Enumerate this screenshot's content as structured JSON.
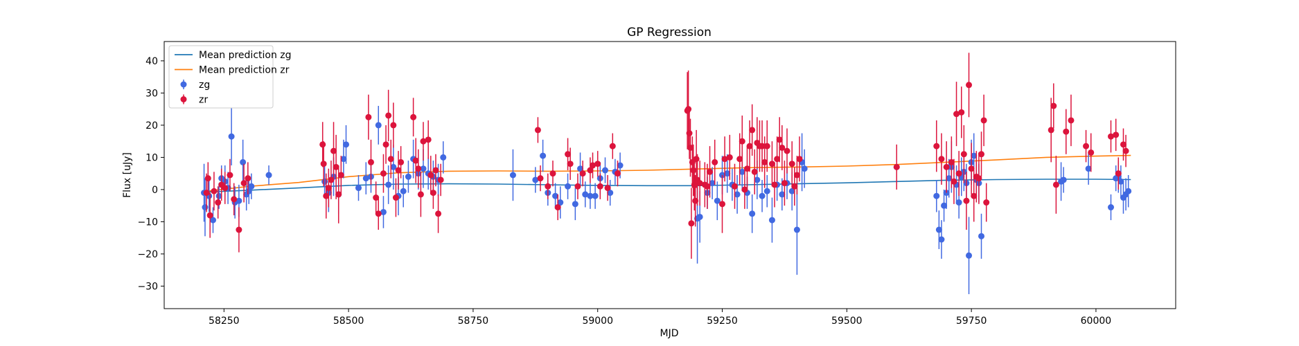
{
  "chart_data": {
    "type": "scatter",
    "title": "GP Regression",
    "xlabel": "MJD",
    "ylabel": "Flux [uJy]",
    "xlim": [
      58130,
      60160
    ],
    "ylim": [
      -37,
      46
    ],
    "xticks": [
      58250,
      58500,
      58750,
      59000,
      59250,
      59500,
      59750,
      60000
    ],
    "yticks": [
      -30,
      -20,
      -10,
      0,
      10,
      20,
      30,
      40
    ],
    "grid": false,
    "legend_position": "top-left",
    "legend": [
      {
        "label": "Mean prediction zg",
        "kind": "line",
        "color": "#1f77b4"
      },
      {
        "label": "Mean prediction zr",
        "kind": "line",
        "color": "#ff7f0e"
      },
      {
        "label": "zg",
        "kind": "errorbar",
        "color": "#4169e1"
      },
      {
        "label": "zr",
        "kind": "errorbar",
        "color": "#dc143c"
      }
    ],
    "lines": [
      {
        "name": "Mean prediction zg",
        "color": "#1f77b4",
        "x": [
          58215,
          58300,
          58400,
          58500,
          58600,
          58700,
          58800,
          58900,
          59000,
          59100,
          59200,
          59300,
          59400,
          59500,
          59600,
          59700,
          59800,
          59900,
          60000,
          60070
        ],
        "y": [
          -0.8,
          -0.2,
          0.5,
          1.3,
          1.7,
          1.8,
          1.7,
          1.5,
          1.3,
          1.2,
          1.2,
          1.5,
          1.8,
          2.1,
          2.5,
          2.9,
          3.1,
          3.2,
          3.2,
          3.1
        ]
      },
      {
        "name": "Mean prediction zr",
        "color": "#ff7f0e",
        "x": [
          58215,
          58300,
          58400,
          58500,
          58600,
          58700,
          58800,
          58900,
          59000,
          59100,
          59200,
          59300,
          59400,
          59500,
          59600,
          59700,
          59800,
          59900,
          60000,
          60070
        ],
        "y": [
          -0.5,
          1.0,
          2.2,
          4.0,
          5.2,
          5.7,
          5.8,
          5.7,
          5.8,
          6.0,
          6.4,
          6.8,
          7.0,
          7.3,
          7.8,
          8.5,
          9.2,
          10.0,
          10.4,
          10.6
        ]
      }
    ],
    "series": [
      {
        "name": "zg",
        "color": "#4169e1",
        "x": [
          58210,
          58212,
          58220,
          58228,
          58240,
          58245,
          58252,
          58258,
          58265,
          58272,
          58280,
          58288,
          58295,
          58300,
          58305,
          58340,
          58452,
          58460,
          58470,
          58480,
          58490,
          58495,
          58520,
          58535,
          58545,
          58560,
          58570,
          58580,
          58590,
          58600,
          58610,
          58620,
          58630,
          58640,
          58650,
          58660,
          58670,
          58680,
          58690,
          58830,
          58875,
          58890,
          58900,
          58915,
          58925,
          58940,
          58955,
          58965,
          58975,
          58985,
          58995,
          59005,
          59015,
          59025,
          59035,
          59045,
          59200,
          59205,
          59220,
          59230,
          59240,
          59250,
          59260,
          59270,
          59280,
          59290,
          59300,
          59310,
          59320,
          59330,
          59340,
          59350,
          59360,
          59370,
          59380,
          59390,
          59400,
          59410,
          59415,
          59600,
          59680,
          59685,
          59690,
          59695,
          59700,
          59705,
          59710,
          59720,
          59725,
          59730,
          59735,
          59740,
          59745,
          59750,
          59755,
          59760,
          59765,
          59770,
          59930,
          59935,
          59985,
          60030,
          60040,
          60045,
          60050,
          60055,
          60060,
          60065
        ],
        "y": [
          -1.0,
          -5.5,
          -2.0,
          -9.5,
          -2.0,
          3.5,
          2.5,
          0.5,
          16.5,
          -4.0,
          -3.5,
          8.5,
          -1.5,
          -0.5,
          1.0,
          4.5,
          2.5,
          -1.0,
          4.0,
          -1.5,
          9.5,
          14.0,
          0.5,
          3.5,
          4.0,
          20.0,
          -7.0,
          1.5,
          7.0,
          -2.0,
          -0.5,
          4.0,
          9.5,
          5.0,
          6.5,
          5.0,
          4.0,
          3.0,
          10.0,
          4.5,
          3.0,
          10.5,
          -1.0,
          -2.0,
          -4.0,
          1.0,
          -4.5,
          6.5,
          -1.5,
          -2.0,
          -2.0,
          3.5,
          6.0,
          -1.0,
          5.5,
          7.5,
          -9.0,
          -8.5,
          -1.0,
          2.0,
          -3.5,
          4.5,
          5.0,
          1.5,
          -1.5,
          5.5,
          -1.0,
          -7.5,
          3.0,
          -2.0,
          -0.5,
          -9.5,
          1.5,
          -1.5,
          2.0,
          -0.5,
          -12.5,
          8.5,
          6.5,
          7.0,
          -2.0,
          -12.5,
          -15.5,
          -5.0,
          -1.0,
          3.5,
          7.0,
          1.5,
          -4.0,
          4.0,
          5.5,
          2.0,
          -20.5,
          8.5,
          10.5,
          3.0,
          2.0,
          -14.5,
          2.5,
          3.0,
          6.5,
          -5.5,
          3.5,
          4.0,
          2.5,
          -2.5,
          -1.5,
          -0.5
        ],
        "yerr": [
          9,
          9,
          5,
          4,
          4,
          4,
          5,
          5,
          9,
          5,
          5,
          7,
          5,
          4,
          4,
          3,
          5,
          6,
          6,
          6,
          6,
          6,
          4,
          5,
          5,
          6,
          5,
          6,
          7,
          6,
          5,
          5,
          6,
          5,
          6,
          5,
          5,
          5,
          5,
          8,
          4,
          5,
          4,
          4,
          5,
          4,
          5,
          5,
          4,
          4,
          4,
          5,
          4,
          4,
          4,
          4,
          14,
          8,
          5,
          5,
          6,
          6,
          6,
          5,
          6,
          6,
          5,
          6,
          6,
          5,
          5,
          7,
          5,
          5,
          5,
          6,
          14,
          9,
          6,
          5,
          5,
          6,
          6,
          5,
          5,
          6,
          8,
          6,
          5,
          6,
          6,
          6,
          12,
          7,
          7,
          6,
          6,
          7,
          6,
          4,
          5,
          4,
          4,
          5,
          5,
          5,
          5,
          5
        ]
      },
      {
        "name": "zr",
        "color": "#dc143c",
        "x": [
          58215,
          58218,
          58222,
          58230,
          58238,
          58245,
          58252,
          58262,
          58270,
          58280,
          58290,
          58298,
          58448,
          58450,
          58455,
          58460,
          58465,
          58470,
          58475,
          58480,
          58485,
          58540,
          58545,
          58555,
          58560,
          58570,
          58575,
          58580,
          58585,
          58590,
          58595,
          58600,
          58605,
          58630,
          58635,
          58640,
          58645,
          58650,
          58660,
          58665,
          58670,
          58675,
          58680,
          58685,
          58880,
          58885,
          58900,
          58910,
          58920,
          58940,
          58945,
          58960,
          58970,
          58985,
          58990,
          59000,
          59005,
          59020,
          59030,
          59040,
          59180,
          59182,
          59184,
          59186,
          59188,
          59190,
          59192,
          59194,
          59196,
          59198,
          59200,
          59205,
          59215,
          59220,
          59225,
          59235,
          59250,
          59255,
          59265,
          59275,
          59285,
          59290,
          59295,
          59300,
          59305,
          59310,
          59315,
          59320,
          59325,
          59330,
          59335,
          59340,
          59350,
          59355,
          59360,
          59365,
          59370,
          59375,
          59380,
          59390,
          59395,
          59400,
          59405,
          59600,
          59680,
          59690,
          59700,
          59710,
          59715,
          59720,
          59725,
          59730,
          59735,
          59740,
          59745,
          59750,
          59755,
          59760,
          59765,
          59770,
          59775,
          59780,
          59910,
          59915,
          59920,
          59940,
          59950,
          59980,
          59990,
          60030,
          60040,
          60045,
          60055,
          60060
        ],
        "y": [
          -1.0,
          3.5,
          -8.0,
          -0.5,
          -4.0,
          1.5,
          0.5,
          4.5,
          -3.0,
          -12.5,
          2.0,
          3.5,
          14.0,
          8.0,
          -2.0,
          0.5,
          3.0,
          12.0,
          7.0,
          -1.5,
          4.5,
          22.5,
          8.5,
          -2.5,
          -7.5,
          5.0,
          14.0,
          23.0,
          9.5,
          20.0,
          -2.5,
          6.0,
          8.5,
          22.5,
          9.0,
          6.5,
          -1.5,
          15.0,
          15.5,
          4.5,
          -1.0,
          6.0,
          -7.5,
          3.0,
          18.5,
          3.5,
          1.0,
          5.0,
          -5.5,
          11.0,
          8.0,
          1.0,
          5.0,
          6.0,
          7.5,
          8.0,
          1.0,
          0.5,
          13.5,
          5.0,
          24.5,
          25.0,
          17.5,
          13.0,
          -10.5,
          8.5,
          6.0,
          1.5,
          -3.5,
          9.5,
          3.0,
          2.0,
          1.5,
          1.0,
          5.5,
          8.5,
          -4.5,
          9.5,
          10.0,
          1.0,
          9.5,
          15.0,
          0.0,
          6.5,
          13.5,
          18.5,
          5.5,
          14.5,
          13.5,
          13.5,
          8.5,
          13.5,
          8.0,
          1.5,
          9.5,
          15.5,
          13.0,
          2.0,
          12.0,
          8.0,
          1.0,
          4.5,
          9.5,
          7.0,
          13.5,
          9.5,
          7.0,
          8.5,
          2.5,
          23.5,
          5.0,
          24.0,
          11.0,
          -3.5,
          32.5,
          6.5,
          -2.0,
          4.0,
          3.5,
          11.0,
          21.5,
          -4.0,
          18.5,
          26.0,
          1.5,
          18.0,
          21.5,
          13.5,
          11.5,
          16.5,
          17.0,
          5.0,
          14.0,
          12.0
        ],
        "yerr": [
          6,
          5,
          7,
          6,
          5,
          5,
          5,
          5,
          5,
          7,
          6,
          5,
          7,
          7,
          7,
          6,
          6,
          9,
          10,
          9,
          6,
          7,
          7,
          5,
          5,
          6,
          6,
          8,
          6,
          7,
          6,
          6,
          5,
          6,
          7,
          6,
          7,
          6,
          6,
          6,
          5,
          5,
          6,
          5,
          4,
          4,
          4,
          4,
          4,
          5,
          5,
          4,
          4,
          4,
          4,
          4,
          4,
          4,
          4,
          4,
          12,
          12,
          8,
          9,
          11,
          8,
          8,
          8,
          8,
          9,
          8,
          7,
          7,
          7,
          8,
          7,
          9,
          7,
          7,
          7,
          8,
          8,
          6,
          7,
          8,
          8,
          7,
          8,
          8,
          8,
          8,
          8,
          7,
          7,
          7,
          7,
          7,
          7,
          7,
          7,
          6,
          6,
          7,
          7,
          8,
          8,
          8,
          8,
          7,
          10,
          7,
          8,
          9,
          9,
          10,
          8,
          8,
          8,
          8,
          7,
          8,
          6,
          10,
          7,
          9,
          7,
          8,
          5,
          6,
          5,
          5,
          5,
          5,
          5
        ]
      }
    ]
  }
}
